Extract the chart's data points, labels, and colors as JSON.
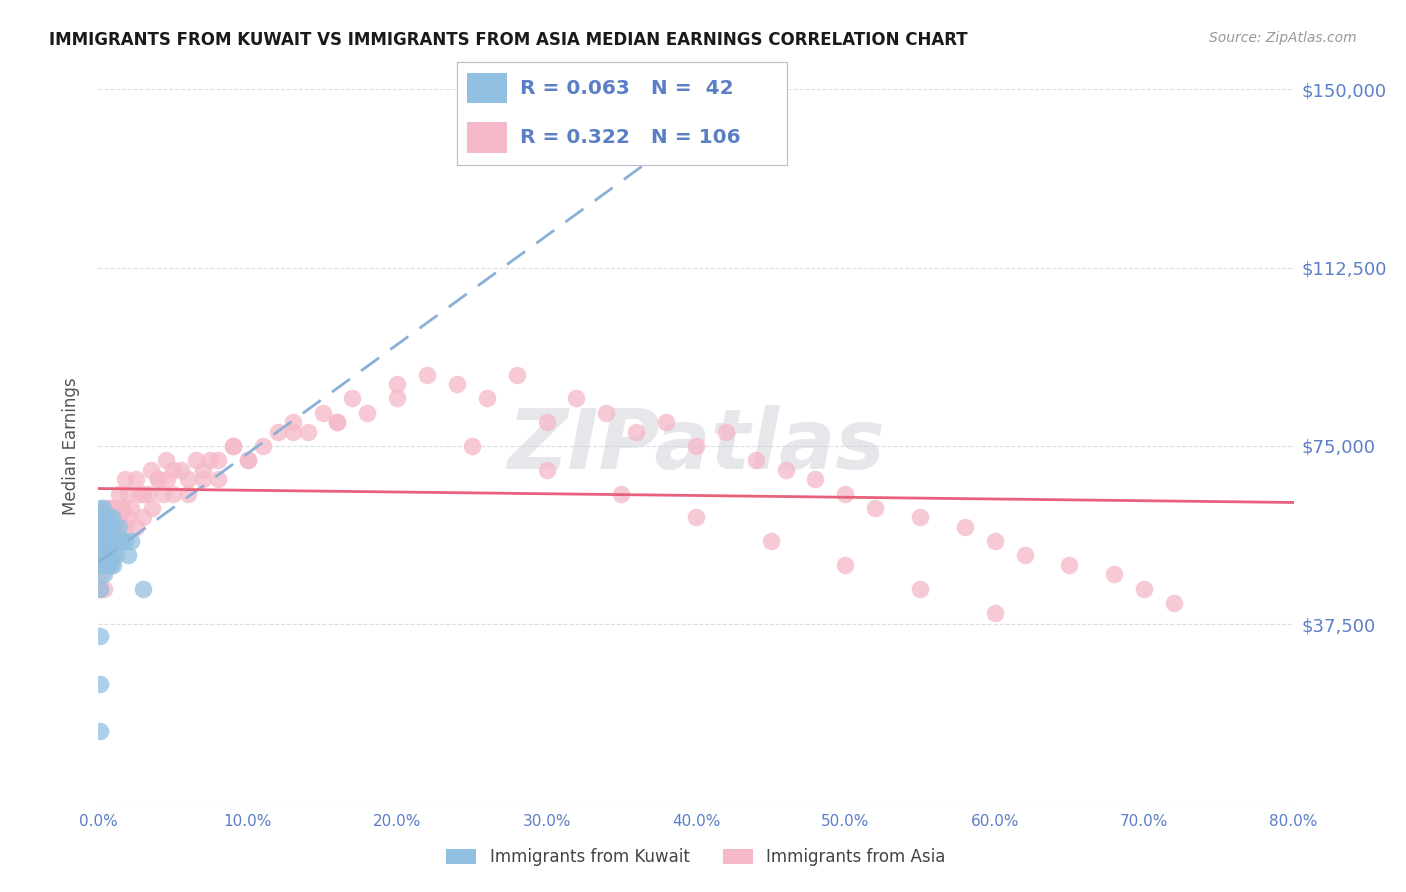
{
  "title": "IMMIGRANTS FROM KUWAIT VS IMMIGRANTS FROM ASIA MEDIAN EARNINGS CORRELATION CHART",
  "source": "Source: ZipAtlas.com",
  "ylabel": "Median Earnings",
  "xlim": [
    0,
    0.8
  ],
  "ylim": [
    0,
    150000
  ],
  "yticks": [
    0,
    37500,
    75000,
    112500,
    150000
  ],
  "ytick_labels": [
    "",
    "$37,500",
    "$75,000",
    "$112,500",
    "$150,000"
  ],
  "xticks": [
    0.0,
    0.1,
    0.2,
    0.3,
    0.4,
    0.5,
    0.6,
    0.7,
    0.8
  ],
  "xtick_labels": [
    "0.0%",
    "10.0%",
    "20.0%",
    "30.0%",
    "40.0%",
    "50.0%",
    "60.0%",
    "70.0%",
    "80.0%"
  ],
  "kuwait_color": "#92c0e0",
  "asia_color": "#f5b8c8",
  "kuwait_line_color": "#8ab0d8",
  "asia_line_color": "#e8607a",
  "tick_color": "#5b7fc7",
  "grid_color": "#d8dae8",
  "background_color": "#ffffff",
  "kuwait_R": 0.063,
  "kuwait_N": 42,
  "asia_R": 0.322,
  "asia_N": 106,
  "legend_label_kuwait": "Immigrants from Kuwait",
  "legend_label_asia": "Immigrants from Asia",
  "watermark": "ZIPatlas",
  "kuwait_x": [
    0.001,
    0.001,
    0.001,
    0.001,
    0.002,
    0.002,
    0.002,
    0.002,
    0.003,
    0.003,
    0.003,
    0.003,
    0.003,
    0.004,
    0.004,
    0.004,
    0.004,
    0.005,
    0.005,
    0.005,
    0.006,
    0.006,
    0.006,
    0.007,
    0.007,
    0.007,
    0.008,
    0.008,
    0.009,
    0.009,
    0.01,
    0.01,
    0.011,
    0.012,
    0.013,
    0.014,
    0.015,
    0.016,
    0.018,
    0.02,
    0.022,
    0.03
  ],
  "kuwait_y": [
    15000,
    25000,
    35000,
    45000,
    50000,
    55000,
    58000,
    62000,
    50000,
    52000,
    55000,
    58000,
    62000,
    48000,
    52000,
    56000,
    60000,
    50000,
    55000,
    60000,
    50000,
    55000,
    58000,
    52000,
    55000,
    60000,
    50000,
    58000,
    52000,
    60000,
    50000,
    58000,
    55000,
    52000,
    55000,
    58000,
    55000,
    55000,
    55000,
    52000,
    55000,
    45000
  ],
  "asia_x": [
    0.001,
    0.001,
    0.002,
    0.002,
    0.003,
    0.003,
    0.004,
    0.004,
    0.005,
    0.005,
    0.006,
    0.006,
    0.007,
    0.008,
    0.008,
    0.009,
    0.01,
    0.01,
    0.011,
    0.012,
    0.013,
    0.014,
    0.015,
    0.016,
    0.018,
    0.02,
    0.022,
    0.025,
    0.028,
    0.03,
    0.033,
    0.036,
    0.04,
    0.043,
    0.046,
    0.05,
    0.055,
    0.06,
    0.065,
    0.07,
    0.075,
    0.08,
    0.09,
    0.1,
    0.11,
    0.12,
    0.13,
    0.14,
    0.15,
    0.16,
    0.17,
    0.18,
    0.2,
    0.22,
    0.24,
    0.26,
    0.28,
    0.3,
    0.32,
    0.34,
    0.36,
    0.38,
    0.4,
    0.42,
    0.44,
    0.46,
    0.48,
    0.5,
    0.52,
    0.55,
    0.58,
    0.6,
    0.62,
    0.65,
    0.68,
    0.7,
    0.72,
    0.008,
    0.01,
    0.012,
    0.014,
    0.016,
    0.018,
    0.02,
    0.025,
    0.03,
    0.035,
    0.04,
    0.045,
    0.05,
    0.06,
    0.07,
    0.08,
    0.09,
    0.1,
    0.13,
    0.16,
    0.2,
    0.25,
    0.3,
    0.35,
    0.4,
    0.45,
    0.5,
    0.55,
    0.6
  ],
  "asia_y": [
    45000,
    55000,
    48000,
    58000,
    50000,
    60000,
    45000,
    55000,
    52000,
    62000,
    50000,
    60000,
    55000,
    50000,
    62000,
    55000,
    52000,
    60000,
    55000,
    58000,
    55000,
    60000,
    55000,
    62000,
    58000,
    60000,
    62000,
    58000,
    65000,
    60000,
    65000,
    62000,
    68000,
    65000,
    68000,
    65000,
    70000,
    68000,
    72000,
    70000,
    72000,
    68000,
    75000,
    72000,
    75000,
    78000,
    80000,
    78000,
    82000,
    80000,
    85000,
    82000,
    88000,
    90000,
    88000,
    85000,
    90000,
    80000,
    85000,
    82000,
    78000,
    80000,
    75000,
    78000,
    72000,
    70000,
    68000,
    65000,
    62000,
    60000,
    58000,
    55000,
    52000,
    50000,
    48000,
    45000,
    42000,
    58000,
    62000,
    60000,
    65000,
    62000,
    68000,
    65000,
    68000,
    65000,
    70000,
    68000,
    72000,
    70000,
    65000,
    68000,
    72000,
    75000,
    72000,
    78000,
    80000,
    85000,
    75000,
    70000,
    65000,
    60000,
    55000,
    50000,
    45000,
    40000
  ]
}
